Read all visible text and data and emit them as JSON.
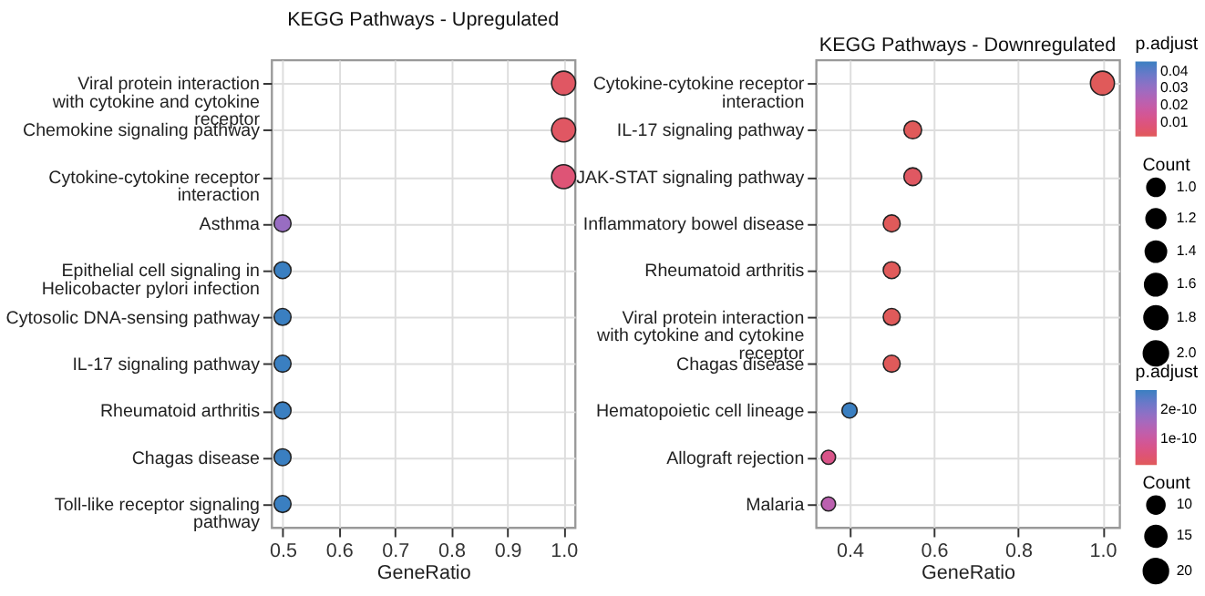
{
  "chart_data": [
    {
      "type": "scatter",
      "orientation": "horizontal",
      "title": "KEGG Pathways - Upregulated",
      "xlabel": "GeneRatio",
      "clabel": "p.adjust",
      "legend_title": "Count",
      "categories": [
        "Viral protein interaction\nwith cytokine and cytokine\nreceptor",
        "Chemokine signaling pathway",
        "Cytokine-cytokine receptor\ninteraction",
        "Asthma",
        "Epithelial cell signaling in\nHelicobacter pylori infection",
        "Cytosolic DNA-sensing pathway",
        "IL-17 signaling pathway",
        "Rheumatoid arthritis",
        "Chagas disease",
        "Toll-like receptor signaling\npathway"
      ],
      "series": [
        {
          "values": [
            1.0,
            1.0,
            1.0,
            0.5,
            0.5,
            0.5,
            0.5,
            0.5,
            0.5,
            0.5
          ],
          "sizes": [
            2,
            2,
            2,
            1,
            1,
            1,
            1,
            1,
            1,
            1
          ],
          "cvalues": [
            0.004,
            0.004,
            0.008,
            0.03,
            0.046,
            0.046,
            0.046,
            0.046,
            0.046,
            0.046
          ]
        }
      ],
      "xlim": [
        0.48,
        1.02
      ],
      "xticks": [
        0.5,
        0.6,
        0.7,
        0.8,
        0.9,
        {
          "value": 1.0,
          "label": "1.0"
        }
      ],
      "clim": [
        0.002,
        0.046
      ],
      "cticks": [
        0.01,
        0.02,
        0.03,
        0.04
      ],
      "size_legend": [
        {
          "value": 1,
          "label": "1.0"
        },
        1.2,
        1.4,
        1.6,
        1.8,
        {
          "value": 2,
          "label": "2.0"
        }
      ],
      "grid": true,
      "marker": "circle"
    },
    {
      "type": "scatter",
      "orientation": "horizontal",
      "title": "KEGG Pathways - Downregulated",
      "xlabel": "GeneRatio",
      "clabel": "p.adjust",
      "legend_title": "Count",
      "categories": [
        "Cytokine-cytokine receptor\ninteraction",
        "IL-17 signaling pathway",
        "JAK-STAT signaling pathway",
        "Inflammatory bowel disease",
        "Rheumatoid arthritis",
        "Viral protein interaction\nwith cytokine and cytokine\nreceptor",
        "Chagas disease",
        "Hematopoietic cell lineage",
        "Allograft rejection",
        "Malaria"
      ],
      "series": [
        {
          "values": [
            1.0,
            0.55,
            0.55,
            0.5,
            0.5,
            0.5,
            0.5,
            0.4,
            0.35,
            0.35
          ],
          "sizes": [
            20,
            11,
            11,
            10,
            10,
            10,
            10,
            8,
            7,
            7
          ],
          "cvalues": [
            1e-11,
            1e-11,
            2e-11,
            1e-11,
            1e-11,
            1e-11,
            1e-11,
            2.7e-10,
            7e-11,
            1.3e-10
          ]
        }
      ],
      "xlim": [
        0.32,
        1.04
      ],
      "xticks": [
        0.4,
        0.6,
        0.8,
        {
          "value": 1.0,
          "label": "1.0"
        }
      ],
      "clim": [
        1e-11,
        2.7e-10
      ],
      "cticks": [
        {
          "value": 1e-10,
          "label": "1e-10"
        },
        {
          "value": 2e-10,
          "label": "2e-10"
        }
      ],
      "size_legend": [
        10,
        15,
        20
      ],
      "grid": true,
      "marker": "circle"
    }
  ]
}
